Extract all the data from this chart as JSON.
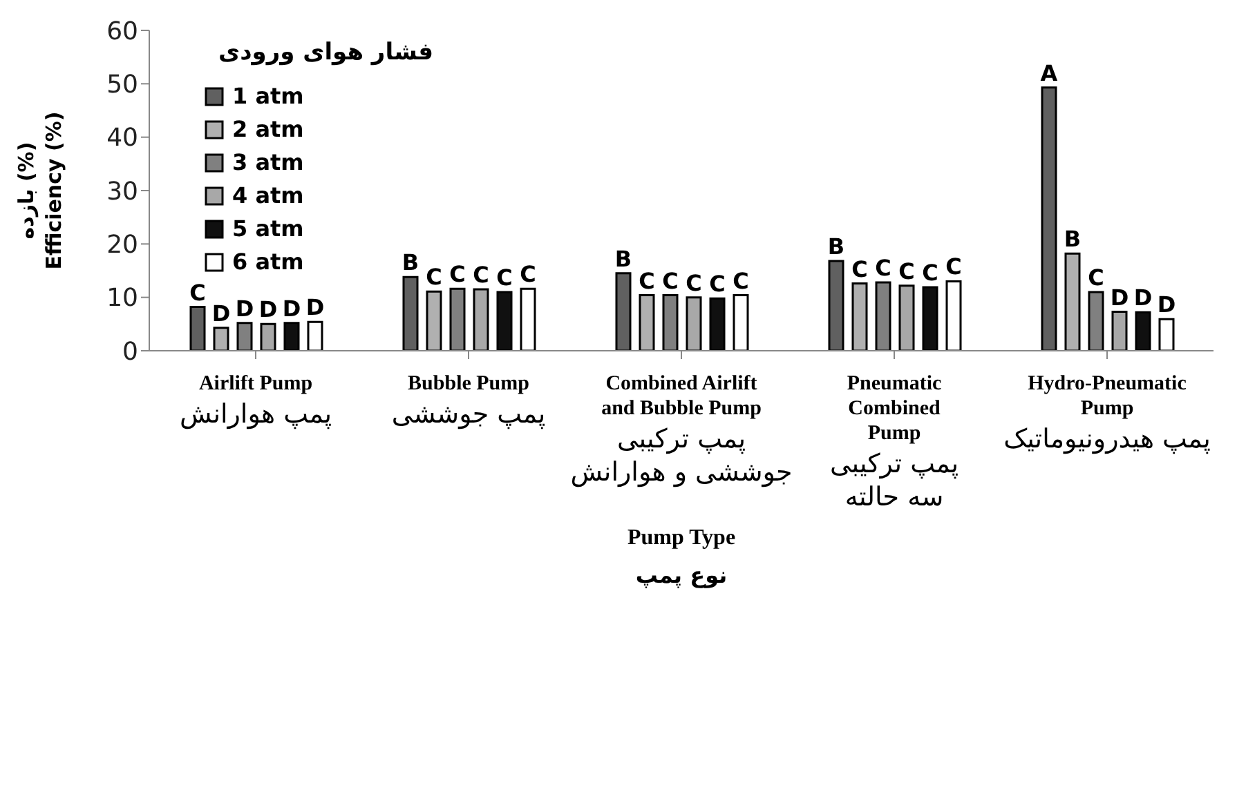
{
  "chart_data": {
    "type": "bar",
    "ylabel": "بازده  (%)\nEfficiency (%)",
    "xlabel": "Pump Type\nنوع پمپ",
    "legend_title": "فشار هوای ورودی",
    "legend": "top left",
    "categories": [
      "Airlift Pump\nپمپ هوارانش",
      "Bubble Pump\nپمپ جوششی",
      "Combined Airlift\nand Bubble Pump\nپمپ ترکیبی\nجوششی و هوارانش",
      "Pneumatic\nCombined\nPump\nپمپ ترکیبی\nسه حالته",
      "Hydro-Pneumatic\nPump\nپمپ هیدرونیوماتیک"
    ],
    "ylim": [
      0,
      60
    ],
    "yticks": [
      0,
      10,
      20,
      30,
      40,
      50,
      60
    ],
    "series": [
      {
        "name": "1 atm",
        "color": "#606060",
        "values": [
          8.2,
          13.8,
          14.5,
          16.8,
          49.3
        ],
        "value_labels": [
          "C",
          "B",
          "B",
          "B",
          "A"
        ]
      },
      {
        "name": "2 atm",
        "color": "#b0b0b0",
        "values": [
          4.3,
          11.1,
          10.4,
          12.6,
          18.2
        ],
        "value_labels": [
          "D",
          "C",
          "C",
          "C",
          "B"
        ]
      },
      {
        "name": "3 atm",
        "color": "#808080",
        "values": [
          5.2,
          11.6,
          10.4,
          12.8,
          11.0
        ],
        "value_labels": [
          "D",
          "C",
          "C",
          "C",
          "C"
        ]
      },
      {
        "name": "4 atm",
        "color": "#a8a8a8",
        "values": [
          5.0,
          11.5,
          10.0,
          12.2,
          7.3
        ],
        "value_labels": [
          "D",
          "C",
          "C",
          "C",
          "D"
        ]
      },
      {
        "name": "5 atm",
        "color": "#101010",
        "values": [
          5.2,
          11.0,
          9.8,
          11.9,
          7.2
        ],
        "value_labels": [
          "D",
          "C",
          "C",
          "C",
          "D"
        ]
      },
      {
        "name": "6 atm",
        "color": "#ffffff",
        "values": [
          5.4,
          11.6,
          10.4,
          13.0,
          5.9
        ],
        "value_labels": [
          "D",
          "C",
          "C",
          "C",
          "D"
        ]
      }
    ]
  }
}
